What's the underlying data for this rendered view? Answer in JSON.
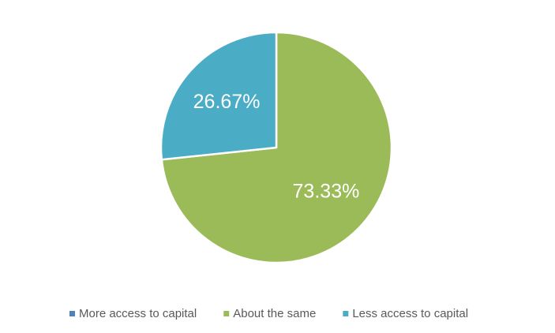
{
  "chart_data": {
    "type": "pie",
    "categories": [
      "More access to capital",
      "About the same",
      "Less access to capital"
    ],
    "values": [
      0,
      73.33,
      26.67
    ],
    "value_labels": [
      null,
      "73.33%",
      "26.67%"
    ],
    "colors": [
      "#4f81bd",
      "#9bbb59",
      "#4bacc6"
    ],
    "legend": "bottom"
  }
}
